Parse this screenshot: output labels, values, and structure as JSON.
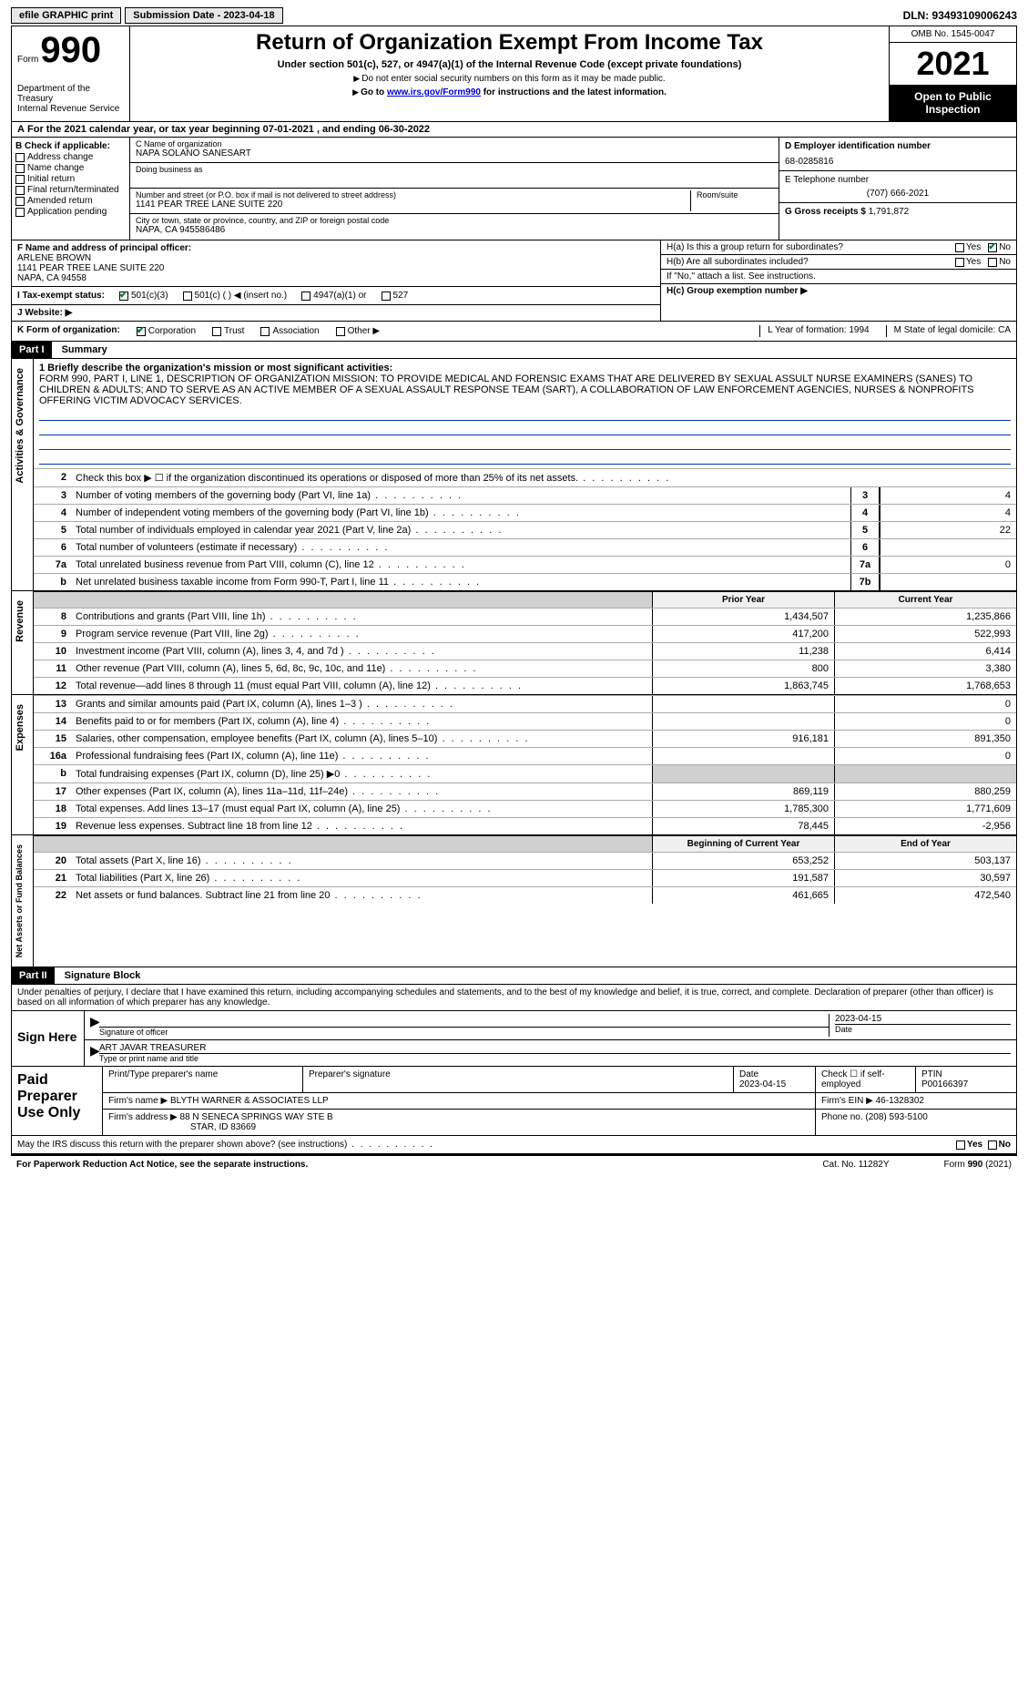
{
  "topbar": {
    "efile": "efile GRAPHIC print",
    "submission": "Submission Date - 2023-04-18",
    "dln": "DLN: 93493109006243"
  },
  "header": {
    "form_word": "Form",
    "form_num": "990",
    "dept": "Department of the Treasury",
    "irs": "Internal Revenue Service",
    "title": "Return of Organization Exempt From Income Tax",
    "subtitle": "Under section 501(c), 527, or 4947(a)(1) of the Internal Revenue Code (except private foundations)",
    "note1": "Do not enter social security numbers on this form as it may be made public.",
    "note2_pre": "Go to ",
    "note2_link": "www.irs.gov/Form990",
    "note2_post": " for instructions and the latest information.",
    "omb": "OMB No. 1545-0047",
    "year": "2021",
    "public": "Open to Public Inspection"
  },
  "row_a": "For the 2021 calendar year, or tax year beginning 07-01-2021   , and ending 06-30-2022",
  "col_b": {
    "label": "B Check if applicable:",
    "items": [
      "Address change",
      "Name change",
      "Initial return",
      "Final return/terminated",
      "Amended return",
      "Application pending"
    ]
  },
  "col_c": {
    "name_label": "C Name of organization",
    "name_val": "NAPA SOLANO SANESART",
    "dba_label": "Doing business as",
    "street_label": "Number and street (or P.O. box if mail is not delivered to street address)",
    "street_val": "1141 PEAR TREE LANE SUITE 220",
    "room_label": "Room/suite",
    "city_label": "City or town, state or province, country, and ZIP or foreign postal code",
    "city_val": "NAPA, CA  945586486"
  },
  "col_d": {
    "ein_label": "D Employer identification number",
    "ein_val": "68-0285816",
    "tel_label": "E Telephone number",
    "tel_val": "(707) 666-2021",
    "gross_label": "G Gross receipts $",
    "gross_val": "1,791,872"
  },
  "row_f": {
    "label": "F  Name and address of principal officer:",
    "name": "ARLENE BROWN",
    "addr1": "1141 PEAR TREE LANE SUITE 220",
    "addr2": "NAPA, CA  94558"
  },
  "row_h": {
    "ha": "H(a)  Is this a group return for subordinates?",
    "hb": "H(b)  Are all subordinates included?",
    "hb_note": "If \"No,\" attach a list. See instructions.",
    "hc": "H(c)  Group exemption number ▶"
  },
  "row_i": {
    "label": "I  Tax-exempt status:",
    "opts": [
      "501(c)(3)",
      "501(c) (  ) ◀ (insert no.)",
      "4947(a)(1) or",
      "527"
    ]
  },
  "row_j": {
    "label": "J  Website: ▶"
  },
  "row_k": {
    "label": "K Form of organization:",
    "opts": [
      "Corporation",
      "Trust",
      "Association",
      "Other ▶"
    ],
    "l": "L Year of formation: 1994",
    "m": "M State of legal domicile: CA"
  },
  "part1": {
    "hdr": "Part I",
    "title": "Summary"
  },
  "mission": {
    "label": "1   Briefly describe the organization's mission or most significant activities:",
    "text": "FORM 990, PART I, LINE 1, DESCRIPTION OF ORGANIZATION MISSION: TO PROVIDE MEDICAL AND FORENSIC EXAMS THAT ARE DELIVERED BY SEXUAL ASSULT NURSE EXAMINERS (SANES) TO CHILDREN & ADULTS; AND TO SERVE AS AN ACTIVE MEMBER OF A SEXUAL ASSAULT RESPONSE TEAM (SART), A COLLABORATION OF LAW ENFORCEMENT AGENCIES, NURSES & NONPROFITS OFFERING VICTIM ADVOCACY SERVICES."
  },
  "gov_label": "Activities & Governance",
  "gov_lines": [
    {
      "n": "2",
      "t": "Check this box ▶ ☐  if the organization discontinued its operations or disposed of more than 25% of its net assets."
    },
    {
      "n": "3",
      "t": "Number of voting members of the governing body (Part VI, line 1a)",
      "k": "3",
      "v": "4"
    },
    {
      "n": "4",
      "t": "Number of independent voting members of the governing body (Part VI, line 1b)",
      "k": "4",
      "v": "4"
    },
    {
      "n": "5",
      "t": "Total number of individuals employed in calendar year 2021 (Part V, line 2a)",
      "k": "5",
      "v": "22"
    },
    {
      "n": "6",
      "t": "Total number of volunteers (estimate if necessary)",
      "k": "6",
      "v": ""
    },
    {
      "n": "7a",
      "t": "Total unrelated business revenue from Part VIII, column (C), line 12",
      "k": "7a",
      "v": "0"
    },
    {
      "n": "b",
      "t": "Net unrelated business taxable income from Form 990-T, Part I, line 11",
      "k": "7b",
      "v": ""
    }
  ],
  "rev_label": "Revenue",
  "rev_hdr": {
    "py": "Prior Year",
    "cy": "Current Year"
  },
  "rev_lines": [
    {
      "n": "8",
      "t": "Contributions and grants (Part VIII, line 1h)",
      "v1": "1,434,507",
      "v2": "1,235,866"
    },
    {
      "n": "9",
      "t": "Program service revenue (Part VIII, line 2g)",
      "v1": "417,200",
      "v2": "522,993"
    },
    {
      "n": "10",
      "t": "Investment income (Part VIII, column (A), lines 3, 4, and 7d )",
      "v1": "11,238",
      "v2": "6,414"
    },
    {
      "n": "11",
      "t": "Other revenue (Part VIII, column (A), lines 5, 6d, 8c, 9c, 10c, and 11e)",
      "v1": "800",
      "v2": "3,380"
    },
    {
      "n": "12",
      "t": "Total revenue—add lines 8 through 11 (must equal Part VIII, column (A), line 12)",
      "v1": "1,863,745",
      "v2": "1,768,653"
    }
  ],
  "exp_label": "Expenses",
  "exp_lines": [
    {
      "n": "13",
      "t": "Grants and similar amounts paid (Part IX, column (A), lines 1–3 )",
      "v1": "",
      "v2": "0"
    },
    {
      "n": "14",
      "t": "Benefits paid to or for members (Part IX, column (A), line 4)",
      "v1": "",
      "v2": "0"
    },
    {
      "n": "15",
      "t": "Salaries, other compensation, employee benefits (Part IX, column (A), lines 5–10)",
      "v1": "916,181",
      "v2": "891,350"
    },
    {
      "n": "16a",
      "t": "Professional fundraising fees (Part IX, column (A), line 11e)",
      "v1": "",
      "v2": "0"
    },
    {
      "n": "b",
      "t": "Total fundraising expenses (Part IX, column (D), line 25) ▶0",
      "v1": "shade",
      "v2": "shade"
    },
    {
      "n": "17",
      "t": "Other expenses (Part IX, column (A), lines 11a–11d, 11f–24e)",
      "v1": "869,119",
      "v2": "880,259"
    },
    {
      "n": "18",
      "t": "Total expenses. Add lines 13–17 (must equal Part IX, column (A), line 25)",
      "v1": "1,785,300",
      "v2": "1,771,609"
    },
    {
      "n": "19",
      "t": "Revenue less expenses. Subtract line 18 from line 12",
      "v1": "78,445",
      "v2": "-2,956"
    }
  ],
  "net_label": "Net Assets or Fund Balances",
  "net_hdr": {
    "py": "Beginning of Current Year",
    "cy": "End of Year"
  },
  "net_lines": [
    {
      "n": "20",
      "t": "Total assets (Part X, line 16)",
      "v1": "653,252",
      "v2": "503,137"
    },
    {
      "n": "21",
      "t": "Total liabilities (Part X, line 26)",
      "v1": "191,587",
      "v2": "30,597"
    },
    {
      "n": "22",
      "t": "Net assets or fund balances. Subtract line 21 from line 20",
      "v1": "461,665",
      "v2": "472,540"
    }
  ],
  "part2": {
    "hdr": "Part II",
    "title": "Signature Block"
  },
  "penalty": "Under penalties of perjury, I declare that I have examined this return, including accompanying schedules and statements, and to the best of my knowledge and belief, it is true, correct, and complete. Declaration of preparer (other than officer) is based on all information of which preparer has any knowledge.",
  "sign": {
    "label": "Sign Here",
    "sig_label": "Signature of officer",
    "date": "2023-04-15",
    "date_label": "Date",
    "name": "ART JAVAR  TREASURER",
    "name_label": "Type or print name and title"
  },
  "paid": {
    "label": "Paid Preparer Use Only",
    "h_name": "Print/Type preparer's name",
    "h_sig": "Preparer's signature",
    "h_date": "Date",
    "date": "2023-04-15",
    "h_check": "Check ☐ if self-employed",
    "h_ptin": "PTIN",
    "ptin": "P00166397",
    "firm_label": "Firm's name    ▶",
    "firm": "BLYTH WARNER & ASSOCIATES LLP",
    "ein_label": "Firm's EIN ▶",
    "ein": "46-1328302",
    "addr_label": "Firm's address ▶",
    "addr1": "88 N SENECA SPRINGS WAY STE B",
    "addr2": "STAR, ID  83669",
    "phone_label": "Phone no.",
    "phone": "(208) 593-5100"
  },
  "discuss": "May the IRS discuss this return with the preparer shown above? (see instructions)",
  "footer": {
    "left": "For Paperwork Reduction Act Notice, see the separate instructions.",
    "mid": "Cat. No. 11282Y",
    "right": "Form 990 (2021)"
  }
}
